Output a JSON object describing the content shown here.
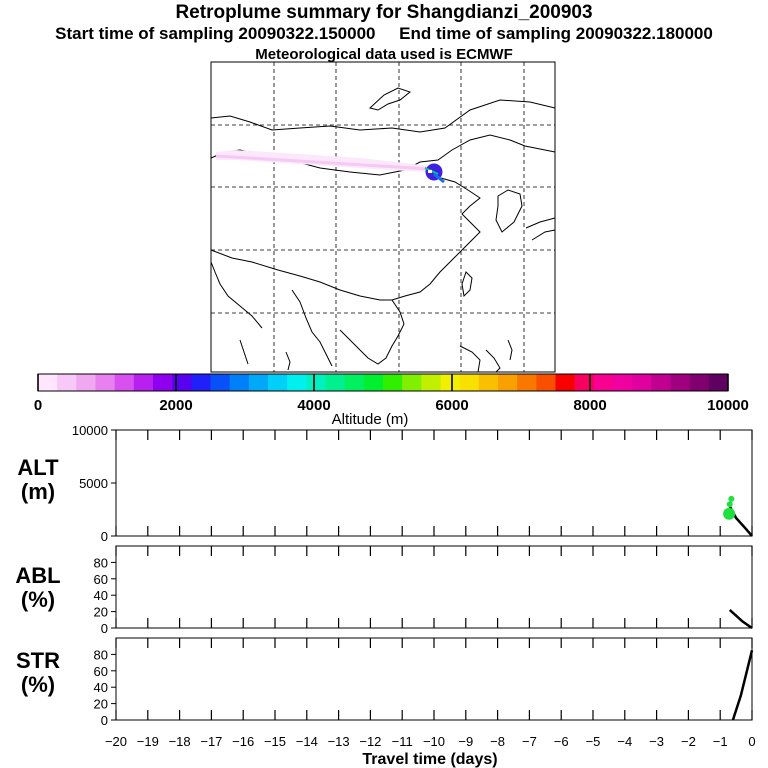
{
  "header": {
    "title": "Retroplume summary for Shangdianzi_200903",
    "start_text": "Start time of sampling 20090322.150000",
    "end_text": "End time of sampling 20090322.180000",
    "met_text": "Meteorological data used is ECMWF"
  },
  "colorbar": {
    "label": "Altitude (m)",
    "ticks": [
      "0",
      "2000",
      "4000",
      "6000",
      "8000",
      "10000"
    ],
    "colors": [
      "#ffe6ff",
      "#f8c8f8",
      "#f0a8f0",
      "#e880f0",
      "#d850f0",
      "#b820f0",
      "#9000f0",
      "#5800f0",
      "#2020f8",
      "#0850f8",
      "#0080f8",
      "#00a8f8",
      "#00d0f8",
      "#00f0f0",
      "#00f0c0",
      "#00f090",
      "#00f060",
      "#00f030",
      "#30f000",
      "#80f000",
      "#c0f000",
      "#f0f000",
      "#f8e000",
      "#f8c000",
      "#f8a000",
      "#f87800",
      "#f85000",
      "#f80000",
      "#f80060",
      "#f80090",
      "#f000a0",
      "#e000a0",
      "#c00090",
      "#a00080",
      "#800070",
      "#600060"
    ]
  },
  "map": {
    "description_colors": {
      "plume": "#f8d8f8",
      "receptor": "#4020e0"
    }
  },
  "chart_data": [
    {
      "type": "line",
      "panel": "ALT",
      "ylabel": "ALT\n(m)",
      "ylim": [
        0,
        10000
      ],
      "yticks": [
        "0",
        "5000",
        "10000"
      ],
      "xlim": [
        -20,
        0
      ],
      "series": [
        {
          "name": "altitude",
          "color": "#000000",
          "x": [
            0,
            -0.2,
            -0.5,
            -0.7
          ],
          "y": [
            0,
            700,
            1700,
            2800
          ]
        }
      ],
      "markers": [
        {
          "x": -0.72,
          "y": 2100,
          "color": "#20e040",
          "size": "large"
        },
        {
          "x": -0.65,
          "y": 3500,
          "color": "#20e040",
          "size": "small"
        },
        {
          "x": -0.7,
          "y": 3000,
          "color": "#20e040",
          "size": "small"
        }
      ]
    },
    {
      "type": "line",
      "panel": "ABL",
      "ylabel": "ABL\n(%)",
      "ylim": [
        0,
        100
      ],
      "yticks": [
        "0",
        "20",
        "40",
        "60",
        "80"
      ],
      "xlim": [
        -20,
        0
      ],
      "series": [
        {
          "name": "abl",
          "color": "#000000",
          "x": [
            0,
            -0.3,
            -0.7
          ],
          "y": [
            0,
            8,
            22
          ]
        }
      ]
    },
    {
      "type": "line",
      "panel": "STR",
      "ylabel": "STR\n(%)",
      "ylim": [
        0,
        100
      ],
      "yticks": [
        "0",
        "20",
        "40",
        "60",
        "80"
      ],
      "xlabel": "Travel time (days)",
      "xticks": [
        "−20",
        "−19",
        "−18",
        "−17",
        "−16",
        "−15",
        "−14",
        "−13",
        "−12",
        "−11",
        "−10",
        "−9",
        "−8",
        "−7",
        "−6",
        "−5",
        "−4",
        "−3",
        "−2",
        "−1",
        "0"
      ],
      "xlim": [
        -20,
        0
      ],
      "series": [
        {
          "name": "stratosphere",
          "color": "#000000",
          "x": [
            0,
            -0.35,
            -0.6
          ],
          "y": [
            85,
            30,
            0
          ]
        }
      ]
    }
  ]
}
